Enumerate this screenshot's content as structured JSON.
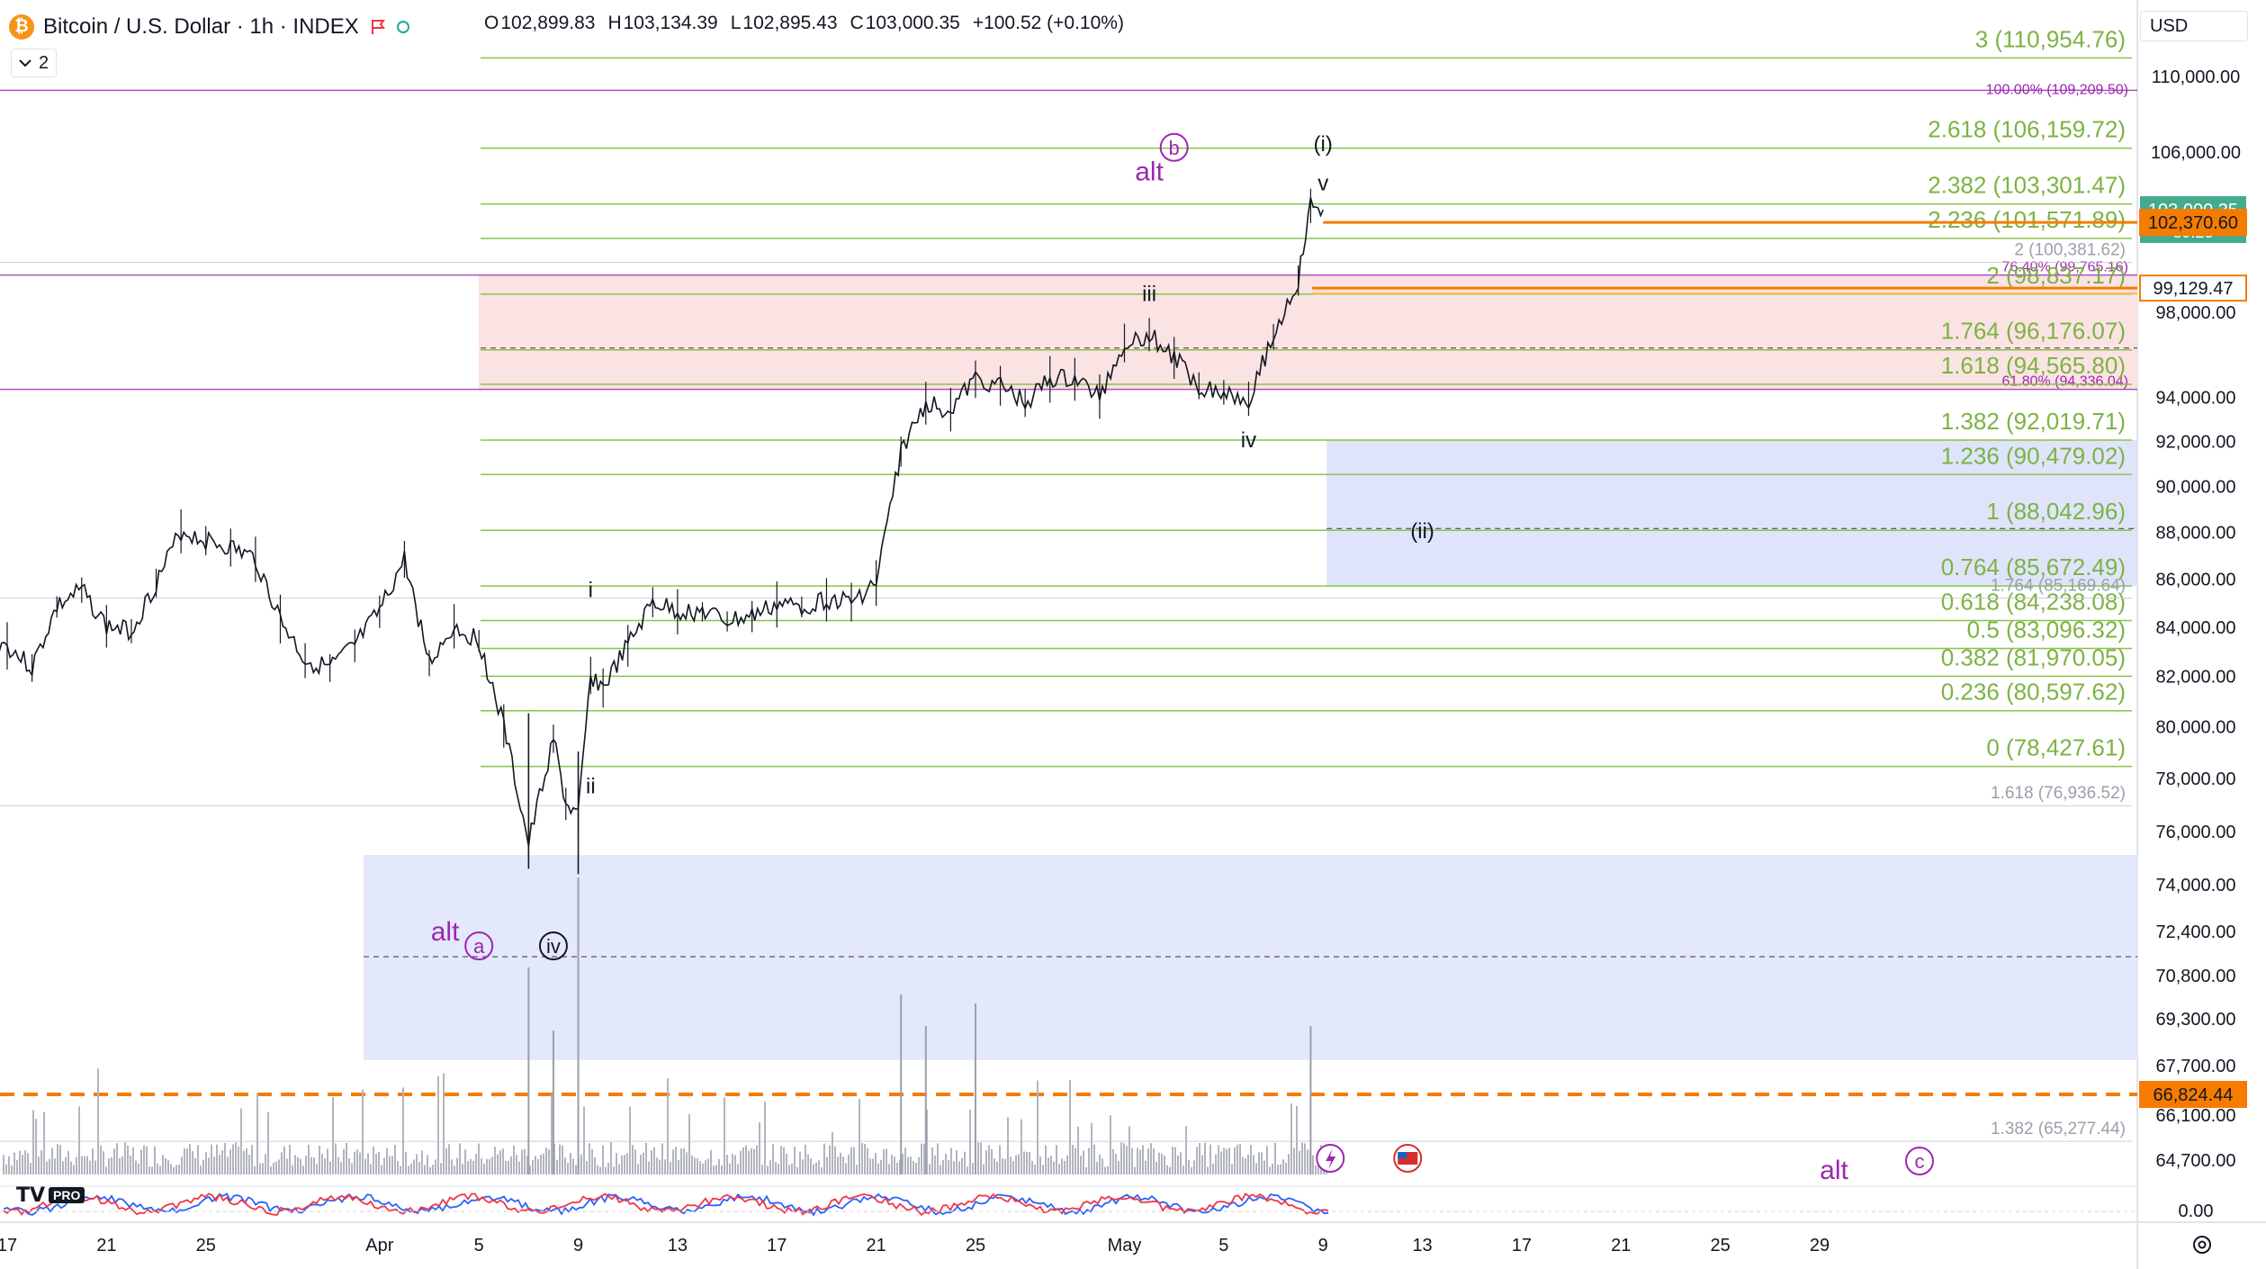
{
  "header": {
    "symbol_icon": "bitcoin-icon",
    "title": "Bitcoin / U.S. Dollar · 1h · INDEX",
    "ohlc": {
      "o_label": "O",
      "o": "102,899.83",
      "h_label": "H",
      "h": "103,134.39",
      "l_label": "L",
      "l": "102,895.43",
      "c_label": "C",
      "c": "103,000.35",
      "change": "+100.52 (+0.10%)"
    },
    "indicator_count": "2",
    "currency": "USD"
  },
  "logo": {
    "text": "TV",
    "badge": "PRO"
  },
  "colors": {
    "green_level": "#8bc34a",
    "purple": "#9c27b0",
    "orange": "#f57c00",
    "candle": "#131722",
    "blue_zone": "#dfe4fb",
    "red_zone": "#fbe3e3",
    "last_price_bg": "#46ab8c"
  },
  "chart_data": {
    "type": "candlestick",
    "title": "Bitcoin / U.S. Dollar · 1h · INDEX",
    "yaxis": {
      "ticks": [
        "110,000.00",
        "106,000.00",
        "98,000.00",
        "94,000.00",
        "92,000.00",
        "90,000.00",
        "88,000.00",
        "86,000.00",
        "84,000.00",
        "82,000.00",
        "80,000.00",
        "78,000.00",
        "76,000.00",
        "74,000.00",
        "72,400.00",
        "70,800.00",
        "69,300.00",
        "67,700.00",
        "66,100.00",
        "64,700.00"
      ],
      "oscillator_tick": "0.00",
      "scale": "log"
    },
    "xaxis": {
      "ticks": [
        {
          "label": "17",
          "date": "2025-03-17"
        },
        {
          "label": "21",
          "date": "2025-03-21"
        },
        {
          "label": "25",
          "date": "2025-03-25"
        },
        {
          "label": "Apr",
          "date": "2025-04-01"
        },
        {
          "label": "5",
          "date": "2025-04-05"
        },
        {
          "label": "9",
          "date": "2025-04-09"
        },
        {
          "label": "13",
          "date": "2025-04-13"
        },
        {
          "label": "17",
          "date": "2025-04-17"
        },
        {
          "label": "21",
          "date": "2025-04-21"
        },
        {
          "label": "25",
          "date": "2025-04-25"
        },
        {
          "label": "May",
          "date": "2025-05-01"
        },
        {
          "label": "5",
          "date": "2025-05-05"
        },
        {
          "label": "9",
          "date": "2025-05-09"
        },
        {
          "label": "13",
          "date": "2025-05-13"
        },
        {
          "label": "17",
          "date": "2025-05-17"
        },
        {
          "label": "21",
          "date": "2025-05-21"
        },
        {
          "label": "25",
          "date": "2025-05-25"
        },
        {
          "label": "29",
          "date": "2025-05-29"
        }
      ]
    },
    "price_path": [
      {
        "date": "2025-03-16",
        "y": 83500
      },
      {
        "date": "2025-03-17",
        "y": 83200
      },
      {
        "date": "2025-03-18",
        "y": 82300
      },
      {
        "date": "2025-03-19",
        "y": 84800
      },
      {
        "date": "2025-03-20",
        "y": 85500
      },
      {
        "date": "2025-03-21",
        "y": 84000
      },
      {
        "date": "2025-03-22",
        "y": 83800
      },
      {
        "date": "2025-03-23",
        "y": 85800
      },
      {
        "date": "2025-03-24",
        "y": 88000
      },
      {
        "date": "2025-03-25",
        "y": 87600
      },
      {
        "date": "2025-03-26",
        "y": 87300
      },
      {
        "date": "2025-03-27",
        "y": 86800
      },
      {
        "date": "2025-03-28",
        "y": 84300
      },
      {
        "date": "2025-03-29",
        "y": 82600
      },
      {
        "date": "2025-03-30",
        "y": 82300
      },
      {
        "date": "2025-03-31",
        "y": 83200
      },
      {
        "date": "2025-04-01",
        "y": 84600
      },
      {
        "date": "2025-04-02",
        "y": 86800
      },
      {
        "date": "2025-04-03",
        "y": 82500
      },
      {
        "date": "2025-04-04",
        "y": 84000
      },
      {
        "date": "2025-04-05",
        "y": 83400
      },
      {
        "date": "2025-04-06",
        "y": 80000
      },
      {
        "date": "2025-04-07",
        "y": 75500
      },
      {
        "date": "2025-04-08",
        "y": 79500
      },
      {
        "date": "2025-04-08T12:00",
        "y": 77000
      },
      {
        "date": "2025-04-09",
        "y": 76500
      },
      {
        "date": "2025-04-09T12:00",
        "y": 82000
      },
      {
        "date": "2025-04-10",
        "y": 81500
      },
      {
        "date": "2025-04-11",
        "y": 83200
      },
      {
        "date": "2025-04-12",
        "y": 85000
      },
      {
        "date": "2025-04-13",
        "y": 84600
      },
      {
        "date": "2025-04-14",
        "y": 84600
      },
      {
        "date": "2025-04-15",
        "y": 84200
      },
      {
        "date": "2025-04-16",
        "y": 84400
      },
      {
        "date": "2025-04-17",
        "y": 84900
      },
      {
        "date": "2025-04-18",
        "y": 84800
      },
      {
        "date": "2025-04-19",
        "y": 85100
      },
      {
        "date": "2025-04-20",
        "y": 85000
      },
      {
        "date": "2025-04-21",
        "y": 85800
      },
      {
        "date": "2025-04-22",
        "y": 91500
      },
      {
        "date": "2025-04-23",
        "y": 93700
      },
      {
        "date": "2025-04-24",
        "y": 93400
      },
      {
        "date": "2025-04-25",
        "y": 94800
      },
      {
        "date": "2025-04-26",
        "y": 94500
      },
      {
        "date": "2025-04-27",
        "y": 93700
      },
      {
        "date": "2025-04-28",
        "y": 94800
      },
      {
        "date": "2025-04-29",
        "y": 94800
      },
      {
        "date": "2025-04-30",
        "y": 94000
      },
      {
        "date": "2025-05-01",
        "y": 96500
      },
      {
        "date": "2025-05-02",
        "y": 96900
      },
      {
        "date": "2025-05-03",
        "y": 95800
      },
      {
        "date": "2025-05-04",
        "y": 94500
      },
      {
        "date": "2025-05-05",
        "y": 94200
      },
      {
        "date": "2025-05-06",
        "y": 93900
      },
      {
        "date": "2025-05-07",
        "y": 96800
      },
      {
        "date": "2025-05-08",
        "y": 99500
      },
      {
        "date": "2025-05-08T12:00",
        "y": 103200
      },
      {
        "date": "2025-05-09",
        "y": 103000
      }
    ],
    "fib_levels": [
      {
        "label": "3 (110,954.76)",
        "y": 110954.76
      },
      {
        "label": "2.618 (106,159.72)",
        "y": 106159.72
      },
      {
        "label": "2.382 (103,301.47)",
        "y": 103301.47
      },
      {
        "label": "2.236 (101,571.89)",
        "y": 101571.89
      },
      {
        "label": "2 (98,837.17)",
        "y": 98837.17
      },
      {
        "label": "1.764 (96,176.07)",
        "y": 96176.07
      },
      {
        "label": "1.618 (94,565.80)",
        "y": 94565.8
      },
      {
        "label": "1.382 (92,019.71)",
        "y": 92019.71
      },
      {
        "label": "1.236 (90,479.02)",
        "y": 90479.02
      },
      {
        "label": "1 (88,042.96)",
        "y": 88042.96
      },
      {
        "label": "0.764 (85,672.49)",
        "y": 85672.49
      },
      {
        "label": "0.618 (84,238.08)",
        "y": 84238.08
      },
      {
        "label": "0.5 (83,096.32)",
        "y": 83096.32
      },
      {
        "label": "0.382 (81,970.05)",
        "y": 81970.05
      },
      {
        "label": "0.236 (80,597.62)",
        "y": 80597.62
      },
      {
        "label": "0 (78,427.61)",
        "y": 78427.61
      }
    ],
    "minor_levels": [
      {
        "label": "2 (100,381.62)",
        "y": 100381.62
      },
      {
        "label": "1.764 (85,169.64)",
        "y": 85169.64
      },
      {
        "label": "1.618 (76,936.52)",
        "y": 76936.52
      },
      {
        "label": "1.382 (65,277.44)",
        "y": 65277.44
      }
    ],
    "purple_levels": [
      {
        "label": "100.00% (109,209.50)",
        "y": 109209.5
      },
      {
        "label": "76.40% (99,765.16)",
        "y": 99765.16
      },
      {
        "label": "61.80% (94,336.04)",
        "y": 94336.04
      }
    ],
    "price_tags": [
      {
        "text": "103,000.35",
        "sub": "39:23",
        "y": 103000.35,
        "kind": "last"
      },
      {
        "text": "102,370.60",
        "y": 102370.6,
        "kind": "orange"
      },
      {
        "text": "99,129.47",
        "y": 99129.47,
        "kind": "orange-outline"
      },
      {
        "text": "66,824.44",
        "y": 66824.44,
        "kind": "orange"
      }
    ],
    "wave_labels": [
      {
        "text": "i",
        "date": "2025-04-09T12:00",
        "y": 85200,
        "style": "plain"
      },
      {
        "text": "ii",
        "date": "2025-04-09T12:00",
        "y": 77400,
        "style": "plain"
      },
      {
        "text": "iii",
        "date": "2025-05-02",
        "y": 98500,
        "style": "plain"
      },
      {
        "text": "iv",
        "date": "2025-05-06",
        "y": 91700,
        "style": "plain"
      },
      {
        "text": "v",
        "date": "2025-05-09",
        "y": 104000,
        "style": "plain"
      },
      {
        "text": "(i)",
        "date": "2025-05-09",
        "y": 106000,
        "style": "plain"
      },
      {
        "text": "(ii)",
        "date": "2025-05-13",
        "y": 87700,
        "style": "plain"
      },
      {
        "text": "iv",
        "date": "2025-04-08",
        "y": 71000,
        "style": "circle"
      },
      {
        "text": "a",
        "date": "2025-04-05",
        "y": 71000,
        "style": "circle-purple"
      },
      {
        "text": "alt",
        "date": "2025-04-04",
        "y": 71200,
        "style": "purple-text"
      },
      {
        "text": "b",
        "date": "2025-05-03",
        "y": 106200,
        "style": "circle-purple"
      },
      {
        "text": "alt",
        "date": "2025-05-02",
        "y": 104500,
        "style": "purple-text"
      },
      {
        "text": "c",
        "date": "2025-05-29",
        "y": 64500,
        "style": "circle-purple"
      },
      {
        "text": "alt",
        "date": "2025-05-28",
        "y": 64000,
        "style": "purple-text"
      }
    ]
  }
}
